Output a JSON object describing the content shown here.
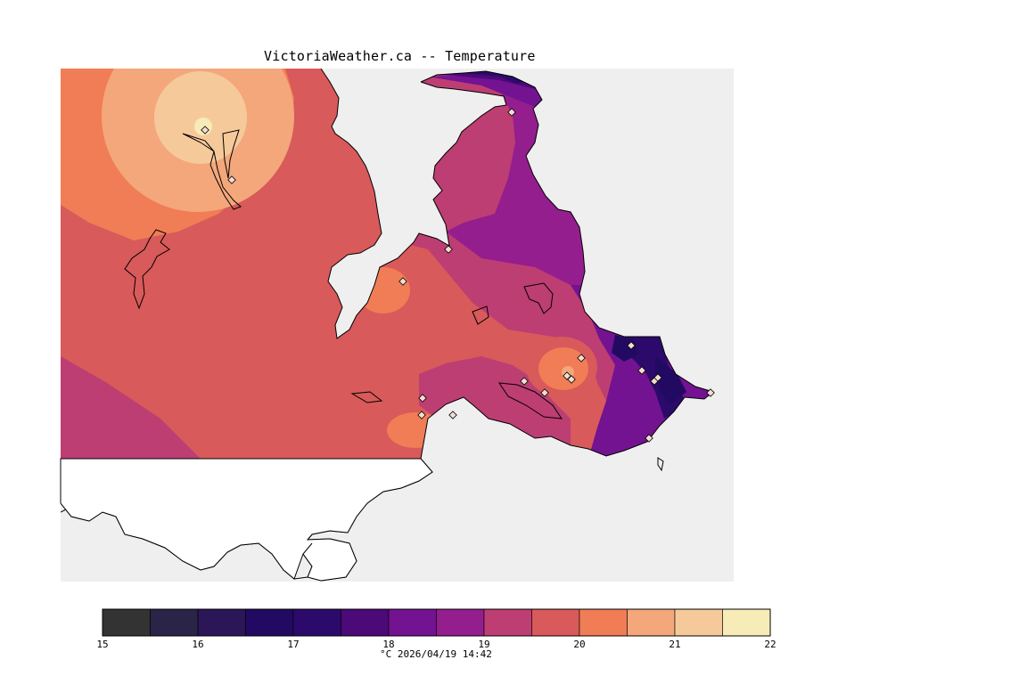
{
  "title": "VictoriaWeather.ca -- Temperature",
  "colors": {
    "ocean": "#efefef",
    "land_nodata": "#ffffff",
    "coast": "#000000",
    "station_marker": "#f3dcd0"
  },
  "legend": {
    "bins": [
      {
        "from": 15.0,
        "to": 15.5,
        "color": "#333333"
      },
      {
        "from": 15.5,
        "to": 16.0,
        "color": "#2a2448"
      },
      {
        "from": 16.0,
        "to": 16.5,
        "color": "#2b1657"
      },
      {
        "from": 16.5,
        "to": 17.0,
        "color": "#220a63"
      },
      {
        "from": 17.0,
        "to": 17.5,
        "color": "#2c0a6b"
      },
      {
        "from": 17.5,
        "to": 18.0,
        "color": "#4b0a78"
      },
      {
        "from": 18.0,
        "to": 18.5,
        "color": "#731391"
      },
      {
        "from": 18.5,
        "to": 19.0,
        "color": "#941e8e"
      },
      {
        "from": 19.0,
        "to": 19.5,
        "color": "#bd3e72"
      },
      {
        "from": 19.5,
        "to": 20.0,
        "color": "#d85a5a"
      },
      {
        "from": 20.0,
        "to": 20.5,
        "color": "#f07d56"
      },
      {
        "from": 20.5,
        "to": 21.0,
        "color": "#f3a77b"
      },
      {
        "from": 21.0,
        "to": 21.5,
        "color": "#f6c99b"
      },
      {
        "from": 21.5,
        "to": 22.0,
        "color": "#f7ebb7"
      }
    ],
    "tick_labels": [
      "15",
      "16",
      "17",
      "18",
      "19",
      "20",
      "21",
      "22"
    ],
    "caption": "°C  2026/04/19 14:42"
  }
}
